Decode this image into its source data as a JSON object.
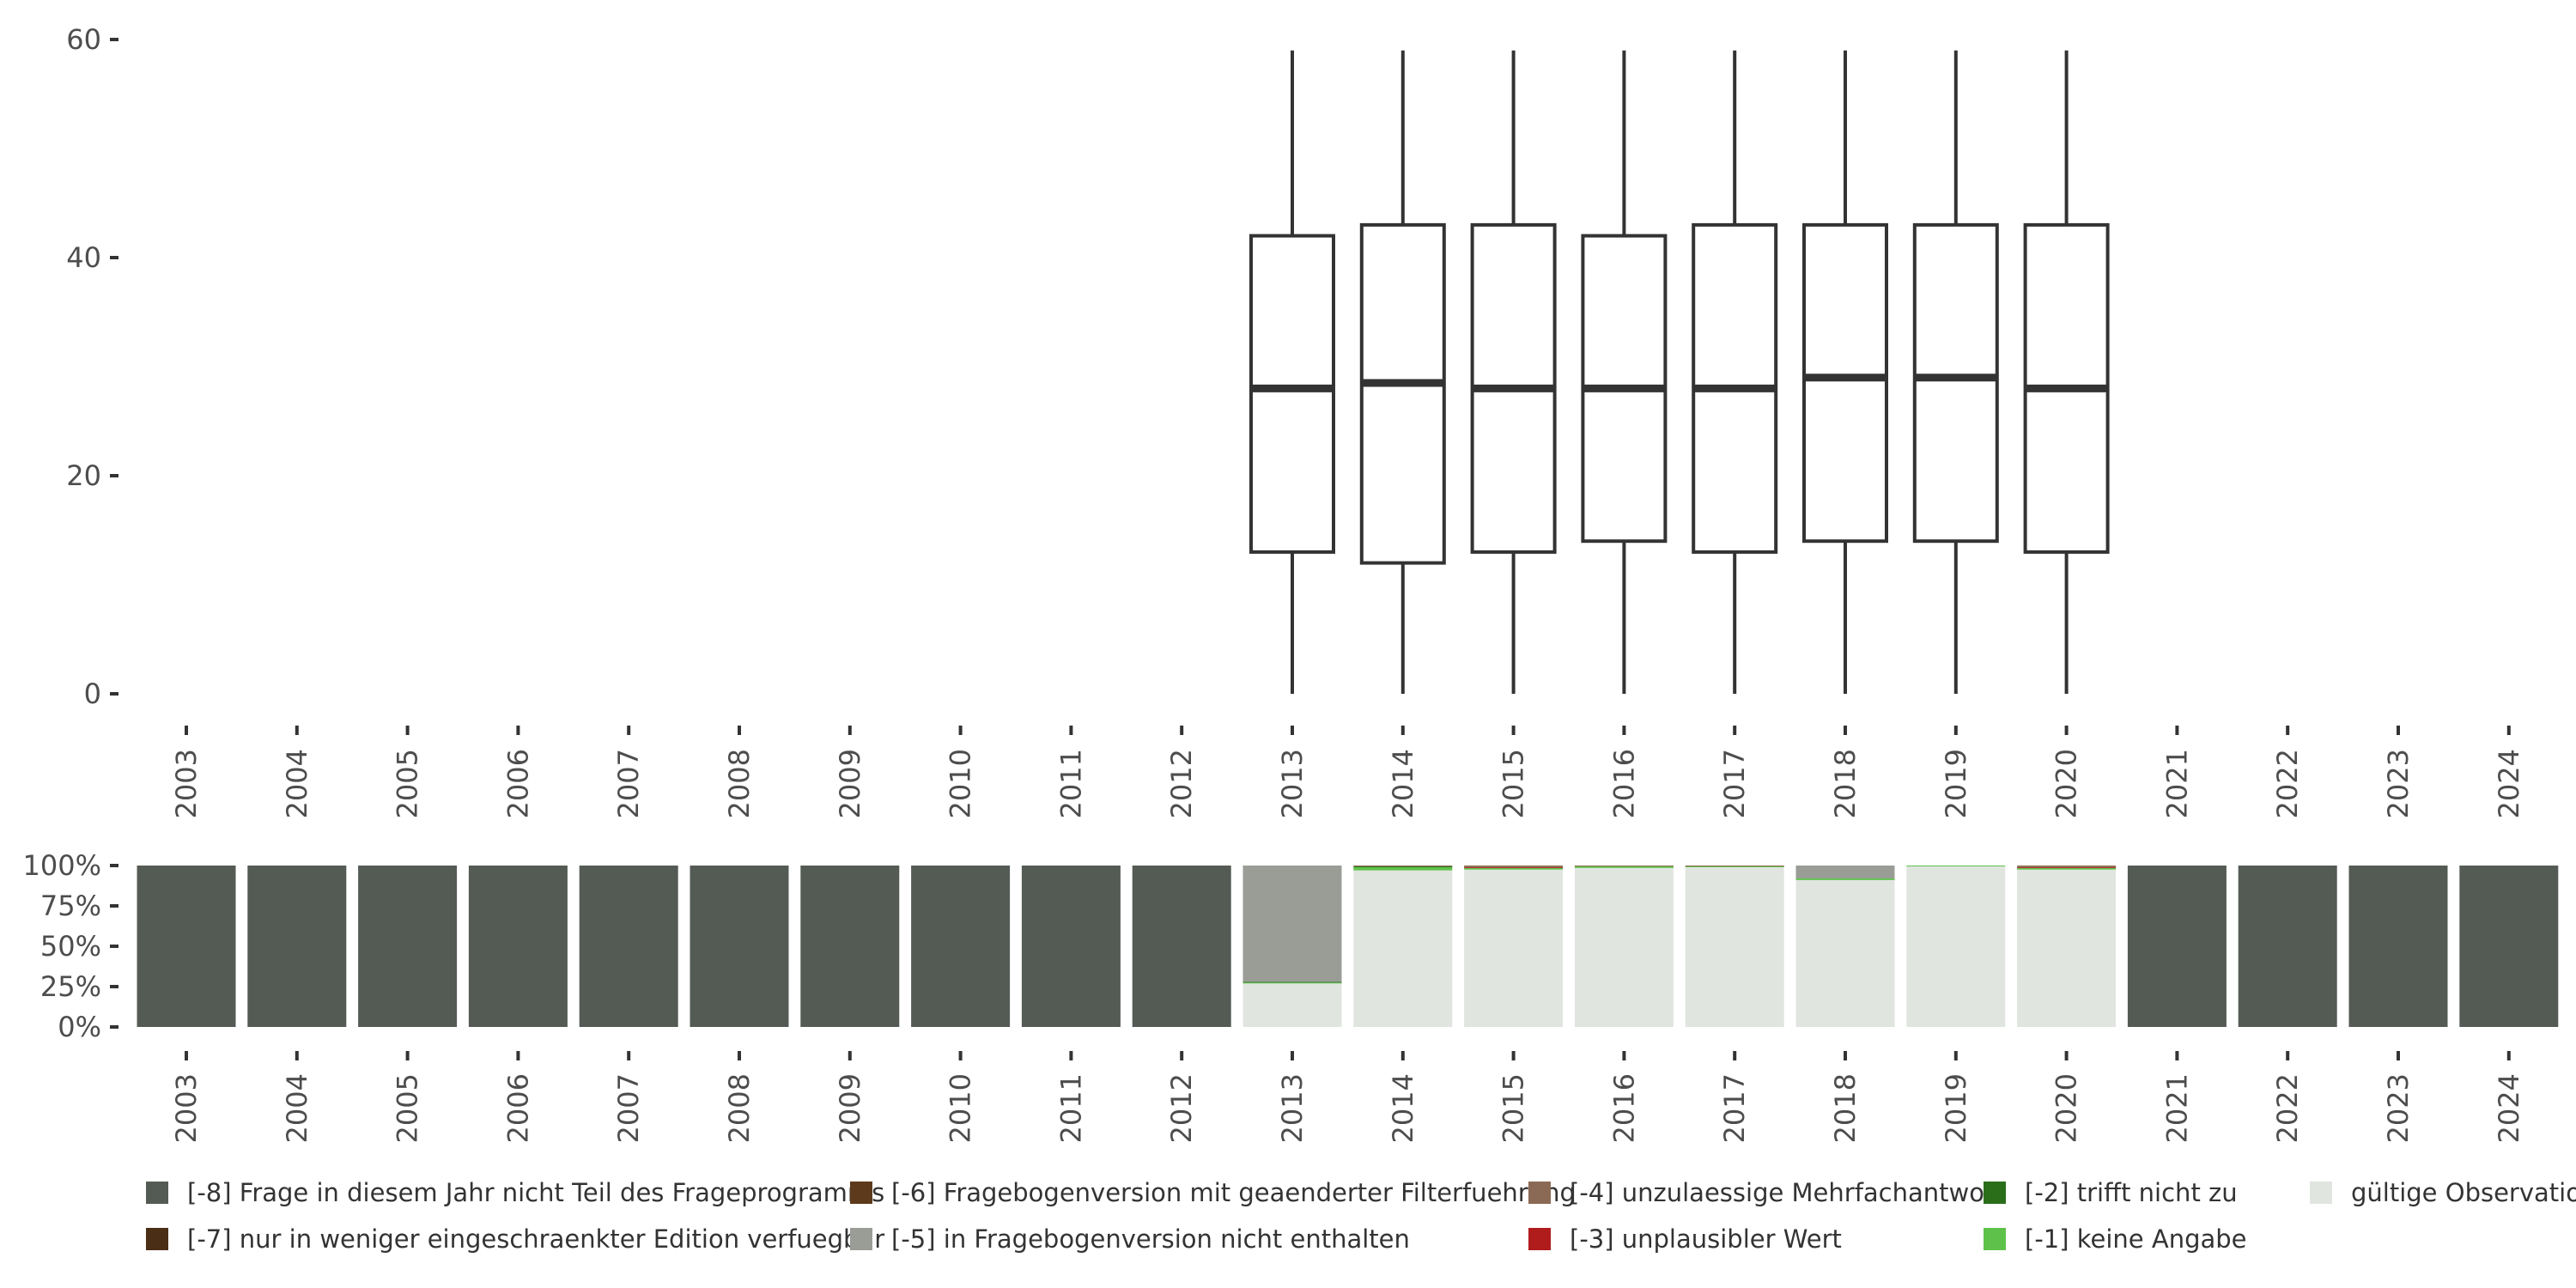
{
  "chart_data": [
    {
      "type": "box",
      "years": [
        "2003",
        "2004",
        "2005",
        "2006",
        "2007",
        "2008",
        "2009",
        "2010",
        "2011",
        "2012",
        "2013",
        "2014",
        "2015",
        "2016",
        "2017",
        "2018",
        "2019",
        "2020",
        "2021",
        "2022",
        "2023",
        "2024"
      ],
      "ylim": [
        0,
        60
      ],
      "yticks": [
        "0",
        "20",
        "40",
        "60"
      ],
      "boxes": [
        {
          "year": "2013",
          "min": 0,
          "q1": 13,
          "median": 28,
          "q3": 42,
          "max": 59
        },
        {
          "year": "2014",
          "min": 0,
          "q1": 12,
          "median": 28.5,
          "q3": 43,
          "max": 59
        },
        {
          "year": "2015",
          "min": 0,
          "q1": 13,
          "median": 28,
          "q3": 43,
          "max": 59
        },
        {
          "year": "2016",
          "min": 0,
          "q1": 14,
          "median": 28,
          "q3": 42,
          "max": 59
        },
        {
          "year": "2017",
          "min": 0,
          "q1": 13,
          "median": 28,
          "q3": 43,
          "max": 59
        },
        {
          "year": "2018",
          "min": 0,
          "q1": 14,
          "median": 29,
          "q3": 43,
          "max": 59
        },
        {
          "year": "2019",
          "min": 0,
          "q1": 14,
          "median": 29,
          "q3": 43,
          "max": 59
        },
        {
          "year": "2020",
          "min": 0,
          "q1": 13,
          "median": 28,
          "q3": 43,
          "max": 59
        }
      ]
    },
    {
      "type": "stacked-bar",
      "yticks": [
        "0%",
        "25%",
        "50%",
        "75%",
        "100%"
      ],
      "categories": [
        {
          "label": "[-8] Frage in diesem Jahr nicht Teil des Frageprogramms",
          "color": "#545b55"
        },
        {
          "label": "[-7] nur in weniger eingeschraenkter Edition verfuegbar",
          "color": "#4a2e16"
        },
        {
          "label": "[-6] Fragebogenversion mit geaenderter Filterfuehrung",
          "color": "#5e3a1c"
        },
        {
          "label": "[-5] in Fragebogenversion nicht enthalten",
          "color": "#999d96"
        },
        {
          "label": "[-4] unzulaessige Mehrfachantwort",
          "color": "#8b6a55"
        },
        {
          "label": "[-3] unplausibler Wert",
          "color": "#b01c1c"
        },
        {
          "label": "[-2] trifft nicht zu",
          "color": "#2a6e1a"
        },
        {
          "label": "[-1] keine Angabe",
          "color": "#5ec24a"
        },
        {
          "label": "gültige Observationen",
          "color": "#e1e5e0"
        }
      ],
      "bars": [
        {
          "year": "2003",
          "values": {
            "[-8] Frage in diesem Jahr nicht Teil des Frageprogramms": 100
          }
        },
        {
          "year": "2004",
          "values": {
            "[-8] Frage in diesem Jahr nicht Teil des Frageprogramms": 100
          }
        },
        {
          "year": "2005",
          "values": {
            "[-8] Frage in diesem Jahr nicht Teil des Frageprogramms": 100
          }
        },
        {
          "year": "2006",
          "values": {
            "[-8] Frage in diesem Jahr nicht Teil des Frageprogramms": 100
          }
        },
        {
          "year": "2007",
          "values": {
            "[-8] Frage in diesem Jahr nicht Teil des Frageprogramms": 100
          }
        },
        {
          "year": "2008",
          "values": {
            "[-8] Frage in diesem Jahr nicht Teil des Frageprogramms": 100
          }
        },
        {
          "year": "2009",
          "values": {
            "[-8] Frage in diesem Jahr nicht Teil des Frageprogramms": 100
          }
        },
        {
          "year": "2010",
          "values": {
            "[-8] Frage in diesem Jahr nicht Teil des Frageprogramms": 100
          }
        },
        {
          "year": "2011",
          "values": {
            "[-8] Frage in diesem Jahr nicht Teil des Frageprogramms": 100
          }
        },
        {
          "year": "2012",
          "values": {
            "[-8] Frage in diesem Jahr nicht Teil des Frageprogramms": 100
          }
        },
        {
          "year": "2013",
          "values": {
            "gültige Observationen": 27,
            "[-1] keine Angabe": 0.5,
            "[-2] trifft nicht zu": 0.5,
            "[-5] in Fragebogenversion nicht enthalten": 72
          }
        },
        {
          "year": "2014",
          "values": {
            "gültige Observationen": 97,
            "[-1] keine Angabe": 2,
            "[-2] trifft nicht zu": 0.5,
            "[-4] unzulaessige Mehrfachantwort": 0.5
          }
        },
        {
          "year": "2015",
          "values": {
            "gültige Observationen": 97.5,
            "[-1] keine Angabe": 1,
            "[-3] unplausibler Wert": 0.5,
            "[-4] unzulaessige Mehrfachantwort": 1
          }
        },
        {
          "year": "2016",
          "values": {
            "gültige Observationen": 98.5,
            "[-1] keine Angabe": 1,
            "[-4] unzulaessige Mehrfachantwort": 0.5
          }
        },
        {
          "year": "2017",
          "values": {
            "gültige Observationen": 99,
            "[-1] keine Angabe": 0.5,
            "[-4] unzulaessige Mehrfachantwort": 0.5
          }
        },
        {
          "year": "2018",
          "values": {
            "gültige Observationen": 91,
            "[-1] keine Angabe": 1,
            "[-5] in Fragebogenversion nicht enthalten": 8
          }
        },
        {
          "year": "2019",
          "values": {
            "gültige Observationen": 99.5,
            "[-1] keine Angabe": 0.5
          }
        },
        {
          "year": "2020",
          "values": {
            "gültige Observationen": 97.5,
            "[-1] keine Angabe": 1,
            "[-3] unplausibler Wert": 0.5,
            "[-4] unzulaessige Mehrfachantwort": 1
          }
        },
        {
          "year": "2021",
          "values": {
            "[-8] Frage in diesem Jahr nicht Teil des Frageprogramms": 100
          }
        },
        {
          "year": "2022",
          "values": {
            "[-8] Frage in diesem Jahr nicht Teil des Frageprogramms": 100
          }
        },
        {
          "year": "2023",
          "values": {
            "[-8] Frage in diesem Jahr nicht Teil des Frageprogramms": 100
          }
        },
        {
          "year": "2024",
          "values": {
            "[-8] Frage in diesem Jahr nicht Teil des Frageprogramms": 100
          }
        }
      ]
    }
  ],
  "legend": {
    "items": [
      {
        "label": "[-8] Frage in diesem Jahr nicht Teil des Frageprogramms",
        "color": "#545b55"
      },
      {
        "label": "[-7] nur in weniger eingeschraenkter Edition verfuegbar",
        "color": "#4a2e16"
      },
      {
        "label": "[-6] Fragebogenversion mit geaenderter Filterfuehrung",
        "color": "#5e3a1c"
      },
      {
        "label": "[-5] in Fragebogenversion nicht enthalten",
        "color": "#999d96"
      },
      {
        "label": "[-4] unzulaessige Mehrfachantwort",
        "color": "#8b6a55"
      },
      {
        "label": "[-3] unplausibler Wert",
        "color": "#b01c1c"
      },
      {
        "label": "[-2] trifft nicht zu",
        "color": "#2a6e1a"
      },
      {
        "label": "[-1] keine Angabe",
        "color": "#5ec24a"
      },
      {
        "label": "gültige Observationen",
        "color": "#e1e5e0"
      }
    ]
  }
}
